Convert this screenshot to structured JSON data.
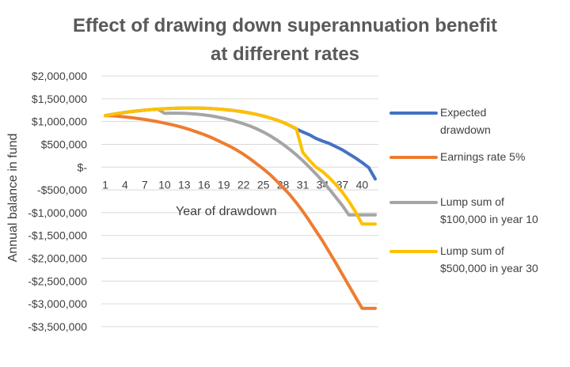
{
  "chart_data": {
    "type": "line",
    "title_lines": [
      "Effect of drawing down superannuation benefit",
      "at different rates"
    ],
    "xlabel": "Year of drawdown",
    "ylabel": "Annual balance in fund",
    "x": [
      1,
      2,
      3,
      4,
      5,
      6,
      7,
      8,
      9,
      10,
      11,
      12,
      13,
      14,
      15,
      16,
      17,
      18,
      19,
      20,
      21,
      22,
      23,
      24,
      25,
      26,
      27,
      28,
      29,
      30,
      31,
      32,
      33,
      34,
      35,
      36,
      37,
      38,
      39,
      40,
      41,
      42
    ],
    "x_tick_labels": [
      "1",
      "4",
      "7",
      "10",
      "13",
      "16",
      "19",
      "22",
      "25",
      "28",
      "31",
      "34",
      "37",
      "40"
    ],
    "ylim": [
      -3500000,
      2000000
    ],
    "y_ticks": [
      2000000,
      1500000,
      1000000,
      500000,
      0,
      -500000,
      -1000000,
      -1500000,
      -2000000,
      -2500000,
      -3000000,
      -3500000
    ],
    "y_tick_labels": [
      "$2,000,000",
      "$1,500,000",
      "$1,000,000",
      "$500,000",
      "$-",
      "-$500,000",
      "-$1,000,000",
      "-$1,500,000",
      "-$2,000,000",
      "-$2,500,000",
      "-$3,000,000",
      "-$3,500,000"
    ],
    "grid": true,
    "legend_position": "right",
    "series": [
      {
        "name": "Expected drawdown",
        "legend_lines": [
          "Expected",
          "drawdown"
        ],
        "color": "#4472c4",
        "values": [
          1130000,
          1155000,
          1180000,
          1200000,
          1220000,
          1235000,
          1250000,
          1262000,
          1272000,
          1280000,
          1287000,
          1292000,
          1295000,
          1296000,
          1295000,
          1292000,
          1286000,
          1277000,
          1265000,
          1250000,
          1232000,
          1210000,
          1185000,
          1155000,
          1120000,
          1080000,
          1035000,
          980000,
          915000,
          840000,
          770000,
          710000,
          630000,
          570000,
          520000,
          450000,
          380000,
          290000,
          200000,
          100000,
          -10000,
          -260000
        ]
      },
      {
        "name": "Earnings rate 5%",
        "legend_lines": [
          "Earnings rate 5%"
        ],
        "color": "#ed7d31",
        "values": [
          1130000,
          1125000,
          1115000,
          1100000,
          1085000,
          1065000,
          1045000,
          1020000,
          995000,
          965000,
          935000,
          900000,
          860000,
          815000,
          765000,
          715000,
          655000,
          590000,
          520000,
          450000,
          370000,
          280000,
          180000,
          70000,
          -40000,
          -160000,
          -300000,
          -450000,
          -600000,
          -780000,
          -970000,
          -1180000,
          -1400000,
          -1620000,
          -1860000,
          -2100000,
          -2350000,
          -2600000,
          -2850000,
          -3100000,
          -3100000,
          -3100000
        ]
      },
      {
        "name": "Lump sum of $100,000 in year 10",
        "legend_lines": [
          "Lump sum of",
          "$100,000 in year 10"
        ],
        "color": "#a5a5a5",
        "values": [
          1130000,
          1155000,
          1180000,
          1200000,
          1220000,
          1235000,
          1250000,
          1262000,
          1272000,
          1180000,
          1182000,
          1183000,
          1180000,
          1172000,
          1160000,
          1145000,
          1125000,
          1100000,
          1070000,
          1035000,
          995000,
          950000,
          900000,
          840000,
          770000,
          690000,
          600000,
          500000,
          390000,
          270000,
          140000,
          0,
          -150000,
          -310000,
          -480000,
          -660000,
          -840000,
          -1050000,
          -1050000,
          -1050000,
          -1050000,
          -1050000
        ]
      },
      {
        "name": "Lump sum of $500,000 in year 30",
        "legend_lines": [
          "Lump sum of",
          "$500,000 in year 30"
        ],
        "color": "#ffc000",
        "values": [
          1130000,
          1155000,
          1180000,
          1200000,
          1220000,
          1235000,
          1250000,
          1262000,
          1272000,
          1280000,
          1287000,
          1292000,
          1295000,
          1296000,
          1295000,
          1292000,
          1286000,
          1277000,
          1265000,
          1250000,
          1232000,
          1210000,
          1185000,
          1155000,
          1120000,
          1080000,
          1035000,
          980000,
          915000,
          850000,
          320000,
          150000,
          0,
          -100000,
          -230000,
          -380000,
          -550000,
          -750000,
          -980000,
          -1250000,
          -1250000,
          -1250000
        ]
      }
    ]
  }
}
